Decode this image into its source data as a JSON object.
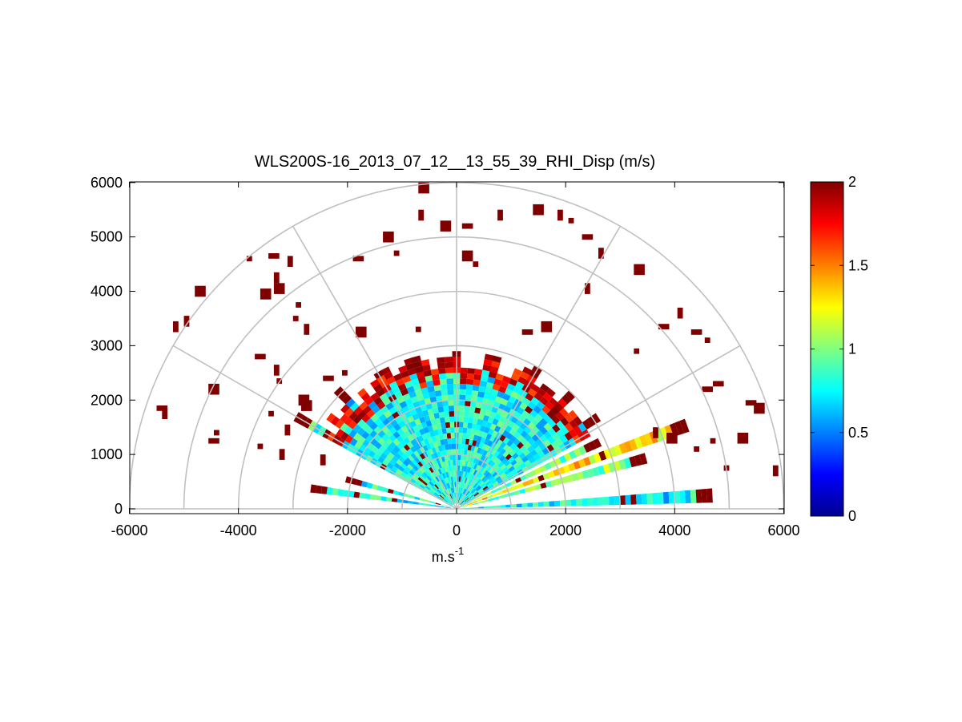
{
  "chart_data": {
    "type": "heatmap",
    "subtype": "polar-rhi",
    "title": "WLS200S-16_2013_07_12__13_55_39_RHI_Disp (m/s)",
    "xlabel": "m.s",
    "xlabel_superscript": "-1",
    "ylabel": "",
    "xlim": [
      -6000,
      6000
    ],
    "ylim": [
      -100,
      6000
    ],
    "xticks": [
      -6000,
      -4000,
      -2000,
      0,
      2000,
      4000,
      6000
    ],
    "yticks": [
      0,
      1000,
      2000,
      3000,
      4000,
      5000,
      6000
    ],
    "range_rings": [
      1000,
      2000,
      3000,
      4000,
      5000,
      6000
    ],
    "radial_spokes_deg": [
      0,
      30,
      60,
      90,
      120,
      150,
      180
    ],
    "grid": true,
    "colorbar": {
      "colormap": "jet",
      "clim": [
        0,
        2
      ],
      "ticks": [
        0,
        0.5,
        1,
        1.5,
        2
      ],
      "tick_labels": [
        "0",
        "0.5",
        "1",
        "1.5",
        "2"
      ]
    },
    "scans": [
      {
        "elevation_deg": 3,
        "max_range_m": 4600,
        "typical_value": 0.75
      },
      {
        "elevation_deg": 15,
        "max_range_m": 3500,
        "typical_value": 1.0
      },
      {
        "elevation_deg": 20,
        "max_range_m": 4400,
        "typical_value": 1.3
      },
      {
        "elevation_deg": 25,
        "max_range_m": 2800,
        "typical_value": 1.0
      },
      {
        "elevation_deg": 33,
        "max_range_m": 3000,
        "typical_value": 0.8
      },
      {
        "elevation_deg": 45,
        "max_range_m": 2900,
        "typical_value": 0.75
      },
      {
        "elevation_deg": 60,
        "max_range_m": 2900,
        "typical_value": 0.7
      },
      {
        "elevation_deg": 75,
        "max_range_m": 2800,
        "typical_value": 0.7
      },
      {
        "elevation_deg": 90,
        "max_range_m": 2800,
        "typical_value": 0.7
      },
      {
        "elevation_deg": 105,
        "max_range_m": 2800,
        "typical_value": 0.7
      },
      {
        "elevation_deg": 120,
        "max_range_m": 2800,
        "typical_value": 0.7
      },
      {
        "elevation_deg": 135,
        "max_range_m": 3000,
        "typical_value": 0.75
      },
      {
        "elevation_deg": 150,
        "max_range_m": 3300,
        "typical_value": 0.8
      },
      {
        "elevation_deg": 165,
        "max_range_m": 2000,
        "typical_value": 0.8
      },
      {
        "elevation_deg": 172,
        "max_range_m": 2600,
        "typical_value": 0.75
      }
    ],
    "saturated_patches": [
      {
        "x": -5400,
        "y": 1850,
        "value": 2
      },
      {
        "x": -5350,
        "y": 1750,
        "value": 2
      },
      {
        "x": -5150,
        "y": 3350,
        "value": 2
      },
      {
        "x": -4950,
        "y": 3450,
        "value": 2
      },
      {
        "x": -4700,
        "y": 4000,
        "value": 2
      },
      {
        "x": -4450,
        "y": 1250,
        "value": 2
      },
      {
        "x": -4400,
        "y": 1400,
        "value": 2
      },
      {
        "x": -4450,
        "y": 2200,
        "value": 2
      },
      {
        "x": -3800,
        "y": 4600,
        "value": 2
      },
      {
        "x": -3350,
        "y": 4650,
        "value": 2
      },
      {
        "x": -3300,
        "y": 4250,
        "value": 2
      },
      {
        "x": -3050,
        "y": 4550,
        "value": 2
      },
      {
        "x": -3600,
        "y": 2800,
        "value": 2
      },
      {
        "x": -3300,
        "y": 2550,
        "value": 2
      },
      {
        "x": -3250,
        "y": 2350,
        "value": 2
      },
      {
        "x": -2900,
        "y": 3750,
        "value": 2
      },
      {
        "x": -2950,
        "y": 3500,
        "value": 2
      },
      {
        "x": -2750,
        "y": 3300,
        "value": 2
      },
      {
        "x": -2800,
        "y": 2000,
        "value": 2
      },
      {
        "x": -2750,
        "y": 1900,
        "value": 2
      },
      {
        "x": -1800,
        "y": 4600,
        "value": 2
      },
      {
        "x": -1250,
        "y": 5000,
        "value": 2
      },
      {
        "x": -1100,
        "y": 4700,
        "value": 2
      },
      {
        "x": -650,
        "y": 5400,
        "value": 2
      },
      {
        "x": -600,
        "y": 5900,
        "value": 2
      },
      {
        "x": -700,
        "y": 3300,
        "value": 2
      },
      {
        "x": -200,
        "y": 5200,
        "value": 2
      },
      {
        "x": 200,
        "y": 5200,
        "value": 2
      },
      {
        "x": 200,
        "y": 4650,
        "value": 2
      },
      {
        "x": 350,
        "y": 4500,
        "value": 2
      },
      {
        "x": 800,
        "y": 5400,
        "value": 2
      },
      {
        "x": 1500,
        "y": 5500,
        "value": 2
      },
      {
        "x": 1900,
        "y": 5400,
        "value": 2
      },
      {
        "x": 2100,
        "y": 5300,
        "value": 2
      },
      {
        "x": 2400,
        "y": 5000,
        "value": 2
      },
      {
        "x": 2650,
        "y": 4700,
        "value": 2
      },
      {
        "x": 2400,
        "y": 4050,
        "value": 2
      },
      {
        "x": 1650,
        "y": 3350,
        "value": 2
      },
      {
        "x": 1300,
        "y": 3250,
        "value": 2
      },
      {
        "x": 3350,
        "y": 4400,
        "value": 2
      },
      {
        "x": 3300,
        "y": 2900,
        "value": 2
      },
      {
        "x": 3800,
        "y": 3350,
        "value": 2
      },
      {
        "x": 4100,
        "y": 3600,
        "value": 2
      },
      {
        "x": 4400,
        "y": 3250,
        "value": 2
      },
      {
        "x": 4600,
        "y": 3100,
        "value": 2
      },
      {
        "x": 4600,
        "y": 2200,
        "value": 2
      },
      {
        "x": 4800,
        "y": 2300,
        "value": 2
      },
      {
        "x": 5400,
        "y": 1950,
        "value": 2
      },
      {
        "x": 5550,
        "y": 1850,
        "value": 2
      },
      {
        "x": 5850,
        "y": 700,
        "value": 2
      },
      {
        "x": 4700,
        "y": 1250,
        "value": 2
      },
      {
        "x": 4400,
        "y": 1100,
        "value": 2
      },
      {
        "x": 3950,
        "y": 1300,
        "value": 2
      },
      {
        "x": 3650,
        "y": 1400,
        "value": 2
      },
      {
        "x": 5250,
        "y": 1300,
        "value": 2
      },
      {
        "x": 4950,
        "y": 750,
        "value": 2
      },
      {
        "x": -3400,
        "y": 1750,
        "value": 2
      },
      {
        "x": -3100,
        "y": 1450,
        "value": 2
      },
      {
        "x": -3200,
        "y": 1000,
        "value": 2
      },
      {
        "x": -2350,
        "y": 2400,
        "value": 2
      },
      {
        "x": -2050,
        "y": 2500,
        "value": 2
      },
      {
        "x": -2450,
        "y": 900,
        "value": 2
      },
      {
        "x": -3600,
        "y": 1150,
        "value": 2
      },
      {
        "x": -2900,
        "y": 1650,
        "value": 2
      },
      {
        "x": -3500,
        "y": 3950,
        "value": 2
      },
      {
        "x": -3250,
        "y": 4050,
        "value": 2
      },
      {
        "x": -1750,
        "y": 3250,
        "value": 2
      }
    ]
  }
}
